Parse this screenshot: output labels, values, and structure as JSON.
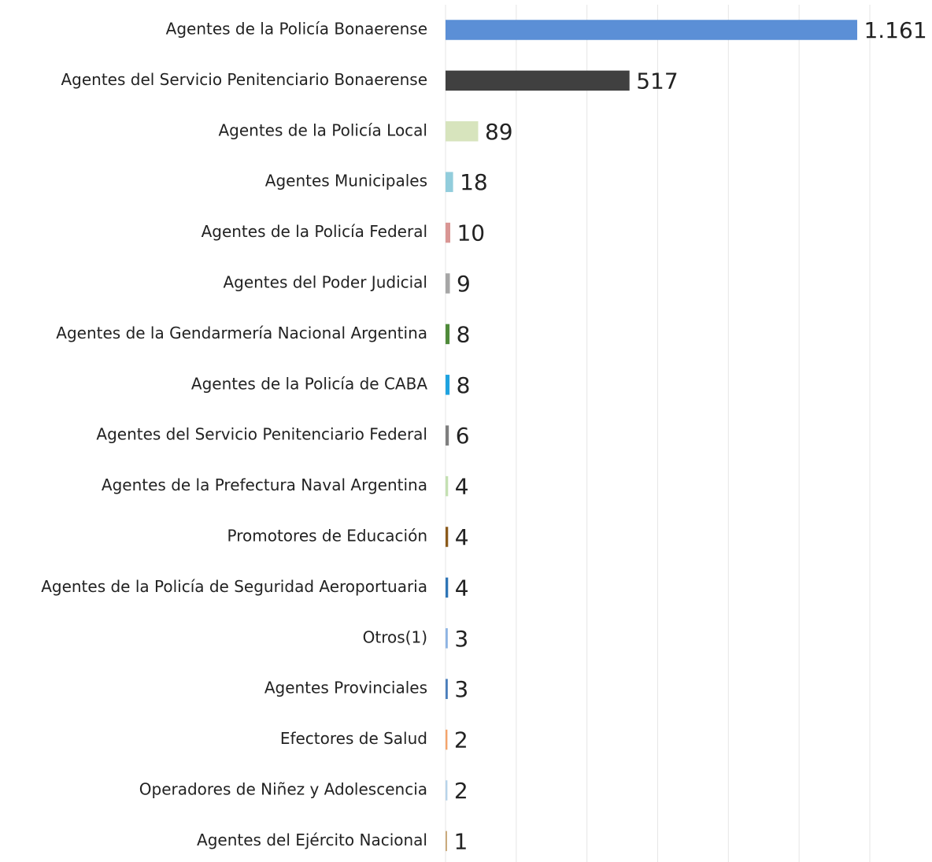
{
  "chart_data": {
    "type": "barh",
    "categories": [
      "Agentes de la Policía Bonaerense",
      "Agentes del Servicio Penitenciario Bonaerense",
      "Agentes de la Policía Local",
      "Agentes Municipales",
      "Agentes de la Policía Federal",
      "Agentes del Poder Judicial",
      "Agentes de la Gendarmería Nacional Argentina",
      "Agentes de la Policía de CABA",
      "Agentes del Servicio Penitenciario Federal",
      "Agentes de la Prefectura Naval Argentina",
      "Promotores de Educación",
      "Agentes de la Policía de Seguridad Aeroportuaria",
      "Otros(1)",
      "Agentes Provinciales",
      "Efectores de Salud",
      "Operadores de Niñez y Adolescencia",
      "Agentes del Ejército Nacional"
    ],
    "values": [
      1161,
      517,
      89,
      18,
      10,
      9,
      8,
      8,
      6,
      4,
      4,
      4,
      3,
      3,
      2,
      2,
      1
    ],
    "value_labels": [
      "1.161",
      "517",
      "89",
      "18",
      "10",
      "9",
      "8",
      "8",
      "6",
      "4",
      "4",
      "4",
      "3",
      "3",
      "2",
      "2",
      "1"
    ],
    "colors": [
      "#5b8fd6",
      "#404040",
      "#d7e4bd",
      "#92cddc",
      "#d99694",
      "#a6a6a6",
      "#4f8a3a",
      "#1fa3e0",
      "#7f7f7f",
      "#c4e0b2",
      "#8b5a1b",
      "#2e75b6",
      "#8eb4e3",
      "#4a7ebb",
      "#f4a46b",
      "#b7d3ea",
      "#c9a97a"
    ],
    "xlim": [
      0,
      1200
    ],
    "xticks": [
      0,
      200,
      400,
      600,
      800,
      1000,
      1200
    ],
    "grid": true
  }
}
